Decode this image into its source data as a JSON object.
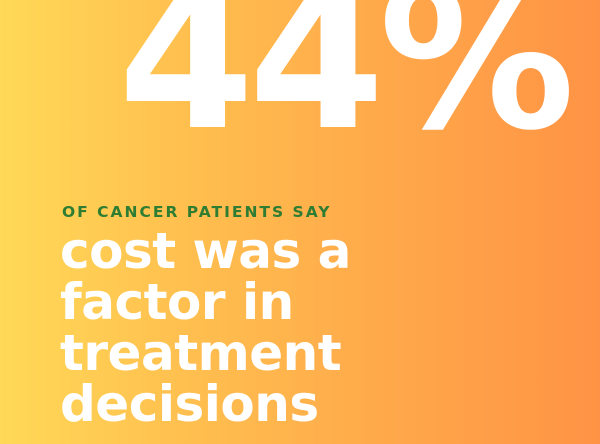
{
  "stat": {
    "value": "44%"
  },
  "kicker": {
    "text": "OF CANCER PATIENTS SAY"
  },
  "headline": {
    "lines": [
      "cost was a",
      "factor in",
      "treatment",
      "decisions"
    ]
  },
  "colors": {
    "background_left": "#FFD957",
    "background_right": "#FF9345",
    "stat_text": "#FFFFFF",
    "kicker_text": "#2E7D32",
    "headline_text": "#FFFFFF"
  }
}
